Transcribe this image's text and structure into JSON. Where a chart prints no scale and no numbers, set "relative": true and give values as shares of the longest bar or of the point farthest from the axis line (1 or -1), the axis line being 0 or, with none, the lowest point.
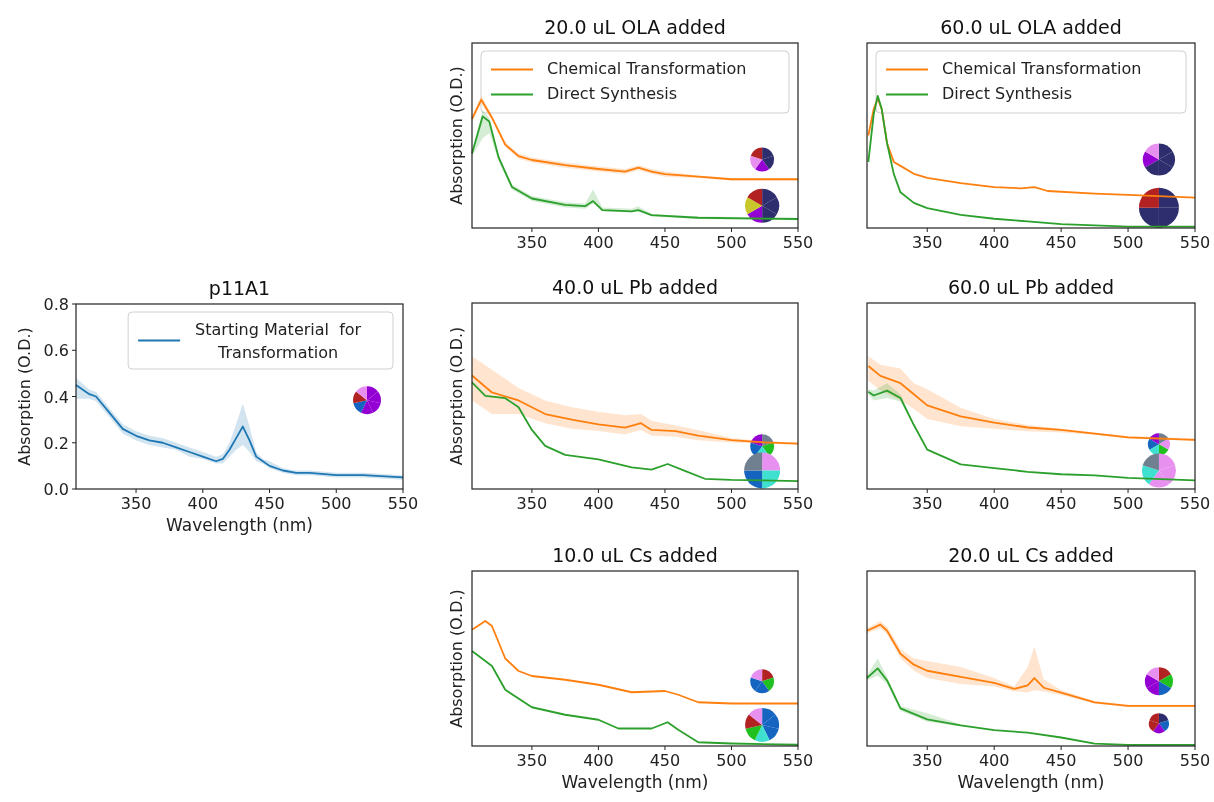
{
  "chart_data": [
    {
      "type": "line",
      "title": "p11A1",
      "xlabel": "Wavelength (nm)",
      "ylabel": "Absorption (O.D.)",
      "xlim": [
        305,
        550
      ],
      "xticks": [
        350,
        400,
        450,
        500,
        550
      ],
      "ylim": [
        0,
        0.8
      ],
      "yticks": [
        {
          "value": 0,
          "label": "0.0"
        },
        0.2,
        0.4,
        0.6,
        0.8
      ],
      "legend": "top right",
      "series": [
        {
          "name": "Starting Material  for Transformation",
          "color": "#1f77b4",
          "x": [
            305,
            315,
            320,
            330,
            340,
            350,
            360,
            370,
            380,
            390,
            400,
            410,
            415,
            420,
            425,
            430,
            435,
            440,
            445,
            450,
            460,
            470,
            480,
            500,
            520,
            550
          ],
          "values": [
            0.45,
            0.41,
            0.4,
            0.33,
            0.26,
            0.23,
            0.21,
            0.2,
            0.18,
            0.16,
            0.14,
            0.12,
            0.13,
            0.17,
            0.22,
            0.27,
            0.21,
            0.14,
            0.12,
            0.1,
            0.08,
            0.07,
            0.07,
            0.06,
            0.06,
            0.05
          ],
          "upper": [
            0.48,
            0.43,
            0.42,
            0.35,
            0.28,
            0.25,
            0.23,
            0.22,
            0.2,
            0.18,
            0.16,
            0.14,
            0.15,
            0.2,
            0.28,
            0.37,
            0.27,
            0.16,
            0.13,
            0.12,
            0.09,
            0.08,
            0.08,
            0.07,
            0.07,
            0.06
          ],
          "lower": [
            0.39,
            0.39,
            0.38,
            0.31,
            0.24,
            0.21,
            0.19,
            0.18,
            0.17,
            0.14,
            0.13,
            0.11,
            0.11,
            0.14,
            0.17,
            0.19,
            0.16,
            0.12,
            0.11,
            0.09,
            0.07,
            0.06,
            0.06,
            0.05,
            0.05,
            0.04
          ]
        }
      ]
    },
    {
      "type": "line",
      "title": "20.0 uL OLA added",
      "ylabel": "Absorption (O.D.)",
      "relative": true,
      "xlim": [
        305,
        550
      ],
      "xticks": [
        350,
        400,
        450,
        500,
        550
      ],
      "tick_labels": "x",
      "legend": "top",
      "series": [
        {
          "name": "Chemical Transformation",
          "color": "#ff7f0e",
          "x": [
            305,
            312,
            320,
            330,
            340,
            350,
            375,
            400,
            420,
            430,
            440,
            450,
            475,
            500,
            550
          ],
          "values": [
            0.85,
            1,
            0.86,
            0.65,
            0.56,
            0.53,
            0.49,
            0.46,
            0.44,
            0.47,
            0.44,
            0.42,
            0.4,
            0.38,
            0.38
          ],
          "upper": [
            0.87,
            1.03,
            0.88,
            0.67,
            0.58,
            0.55,
            0.51,
            0.48,
            0.46,
            0.49,
            0.46,
            0.44,
            0.41,
            0.39,
            0.39
          ],
          "lower": [
            0.83,
            0.97,
            0.84,
            0.63,
            0.54,
            0.51,
            0.47,
            0.44,
            0.42,
            0.45,
            0.42,
            0.4,
            0.39,
            0.37,
            0.37
          ]
        },
        {
          "name": "Direct Synthesis",
          "color": "#2ca02c",
          "x": [
            305,
            313,
            318,
            325,
            335,
            350,
            375,
            390,
            396,
            403,
            425,
            430,
            440,
            475,
            550
          ],
          "values": [
            0.58,
            0.87,
            0.83,
            0.55,
            0.32,
            0.23,
            0.18,
            0.17,
            0.21,
            0.14,
            0.13,
            0.14,
            0.1,
            0.08,
            0.07
          ],
          "upper": [
            0.6,
            0.92,
            0.86,
            0.57,
            0.34,
            0.25,
            0.2,
            0.19,
            0.3,
            0.16,
            0.15,
            0.17,
            0.11,
            0.09,
            0.08
          ],
          "lower": [
            0.56,
            0.7,
            0.74,
            0.52,
            0.3,
            0.21,
            0.16,
            0.15,
            0.19,
            0.13,
            0.12,
            0.13,
            0.09,
            0.07,
            0.06
          ]
        }
      ]
    },
    {
      "type": "line",
      "title": "60.0 uL OLA added",
      "relative": true,
      "xlim": [
        305,
        550
      ],
      "xticks": [
        350,
        400,
        450,
        500,
        550
      ],
      "tick_labels": "x",
      "legend": "top",
      "series": [
        {
          "name": "Chemical Transformation",
          "color": "#ff7f0e",
          "x": [
            306,
            310,
            313,
            316,
            320,
            325,
            330,
            340,
            350,
            375,
            400,
            420,
            430,
            440,
            475,
            500,
            550
          ],
          "values": [
            0.7,
            0.9,
            0.98,
            0.9,
            0.64,
            0.5,
            0.47,
            0.41,
            0.38,
            0.34,
            0.31,
            0.3,
            0.31,
            0.28,
            0.26,
            0.25,
            0.23
          ]
        },
        {
          "name": "Direct Synthesis",
          "color": "#2ca02c",
          "x": [
            306,
            310,
            313,
            316,
            320,
            325,
            330,
            340,
            350,
            375,
            400,
            425,
            450,
            500,
            550
          ],
          "values": [
            0.5,
            0.86,
            1,
            0.9,
            0.64,
            0.41,
            0.27,
            0.19,
            0.15,
            0.1,
            0.07,
            0.05,
            0.03,
            0.01,
            0.01
          ]
        }
      ]
    },
    {
      "type": "line",
      "title": "40.0 uL Pb added",
      "ylabel": "Absorption (O.D.)",
      "relative": true,
      "xlim": [
        305,
        550
      ],
      "xticks": [
        350,
        400,
        450,
        500,
        550
      ],
      "tick_labels": "x",
      "series": [
        {
          "color": "#ff7f0e",
          "x": [
            305,
            320,
            340,
            360,
            380,
            400,
            420,
            432,
            440,
            458,
            475,
            500,
            525,
            550
          ],
          "values": [
            1,
            0.85,
            0.78,
            0.66,
            0.61,
            0.57,
            0.54,
            0.58,
            0.52,
            0.51,
            0.47,
            0.43,
            0.41,
            0.4
          ],
          "upper": [
            1.17,
            1.05,
            0.89,
            0.78,
            0.72,
            0.68,
            0.65,
            0.66,
            0.6,
            0.56,
            0.52,
            0.45,
            0.42,
            0.41
          ],
          "lower": [
            0.78,
            0.66,
            0.66,
            0.58,
            0.53,
            0.51,
            0.48,
            0.52,
            0.47,
            0.46,
            0.43,
            0.41,
            0.4,
            0.39
          ]
        },
        {
          "color": "#2ca02c",
          "x": [
            305,
            315,
            330,
            340,
            350,
            360,
            375,
            400,
            425,
            440,
            452,
            465,
            480,
            500,
            550
          ],
          "values": [
            0.94,
            0.82,
            0.8,
            0.72,
            0.52,
            0.38,
            0.3,
            0.26,
            0.19,
            0.17,
            0.22,
            0.16,
            0.09,
            0.08,
            0.07
          ]
        }
      ]
    },
    {
      "type": "line",
      "title": "60.0 uL Pb added",
      "relative": true,
      "xlim": [
        305,
        550
      ],
      "xticks": [
        350,
        400,
        450,
        500,
        550
      ],
      "tick_labels": "x",
      "series": [
        {
          "color": "#ff7f0e",
          "x": [
            306,
            315,
            330,
            340,
            350,
            375,
            400,
            425,
            450,
            475,
            500,
            550
          ],
          "values": [
            1,
            0.92,
            0.86,
            0.77,
            0.68,
            0.59,
            0.54,
            0.5,
            0.48,
            0.45,
            0.42,
            0.4
          ],
          "upper": [
            1.08,
            1.01,
            0.98,
            0.86,
            0.81,
            0.66,
            0.57,
            0.52,
            0.49,
            0.46,
            0.43,
            0.41
          ],
          "lower": [
            0.88,
            0.8,
            0.72,
            0.65,
            0.57,
            0.51,
            0.49,
            0.47,
            0.46,
            0.44,
            0.41,
            0.39
          ]
        },
        {
          "color": "#2ca02c",
          "x": [
            306,
            310,
            320,
            330,
            340,
            350,
            375,
            400,
            425,
            450,
            475,
            500,
            550
          ],
          "values": [
            0.79,
            0.76,
            0.8,
            0.74,
            0.52,
            0.32,
            0.2,
            0.17,
            0.14,
            0.12,
            0.11,
            0.09,
            0.07
          ],
          "upper": [
            0.81,
            0.8,
            0.86,
            0.77,
            0.53,
            0.33,
            null,
            null,
            null,
            null,
            null,
            null,
            null
          ],
          "lower": [
            0.77,
            0.72,
            0.74,
            0.71,
            0.51,
            0.31,
            null,
            null,
            null,
            null,
            null,
            null,
            null
          ]
        }
      ]
    },
    {
      "type": "line",
      "title": "10.0 uL Cs added",
      "xlabel": "Wavelength (nm)",
      "ylabel": "Absorption (O.D.)",
      "relative": true,
      "xlim": [
        305,
        550
      ],
      "xticks": [
        350,
        400,
        450,
        500,
        550
      ],
      "tick_labels": "x",
      "series": [
        {
          "color": "#ff7f0e",
          "x": [
            305,
            315,
            320,
            330,
            340,
            350,
            375,
            400,
            425,
            450,
            460,
            475,
            500,
            550
          ],
          "values": [
            0.93,
            1,
            0.96,
            0.7,
            0.6,
            0.56,
            0.53,
            0.49,
            0.43,
            0.44,
            0.41,
            0.35,
            0.34,
            0.34
          ]
        },
        {
          "color": "#2ca02c",
          "x": [
            305,
            315,
            320,
            330,
            350,
            375,
            400,
            415,
            440,
            452,
            460,
            475,
            500,
            550
          ],
          "values": [
            0.76,
            0.68,
            0.64,
            0.45,
            0.31,
            0.25,
            0.21,
            0.14,
            0.14,
            0.19,
            0.13,
            0.03,
            0.02,
            0.01
          ]
        }
      ]
    },
    {
      "type": "line",
      "title": "20.0 uL Cs added",
      "xlabel": "Wavelength (nm)",
      "relative": true,
      "xlim": [
        305,
        550
      ],
      "xticks": [
        350,
        400,
        450,
        500,
        550
      ],
      "tick_labels": "x",
      "series": [
        {
          "color": "#ff7f0e",
          "x": [
            305,
            315,
            320,
            330,
            340,
            350,
            375,
            400,
            415,
            425,
            430,
            437,
            450,
            475,
            500,
            550
          ],
          "values": [
            0.95,
            1,
            0.95,
            0.76,
            0.67,
            0.62,
            0.57,
            0.52,
            0.47,
            0.5,
            0.56,
            0.48,
            0.44,
            0.36,
            0.33,
            0.33
          ],
          "upper": [
            0.97,
            1.03,
            0.98,
            0.8,
            0.72,
            0.7,
            0.65,
            0.56,
            0.49,
            0.65,
            0.82,
            0.55,
            0.46,
            0.37,
            0.34,
            0.34
          ],
          "lower": [
            0.93,
            0.97,
            0.92,
            0.72,
            0.62,
            0.56,
            0.51,
            0.49,
            0.45,
            0.44,
            0.46,
            0.45,
            0.42,
            0.35,
            0.32,
            0.32
          ]
        },
        {
          "color": "#2ca02c",
          "x": [
            305,
            313,
            320,
            330,
            350,
            375,
            400,
            425,
            450,
            475,
            500,
            550
          ],
          "values": [
            0.56,
            0.64,
            0.54,
            0.31,
            0.22,
            0.17,
            0.13,
            0.11,
            0.07,
            0.02,
            0.01,
            0.01
          ],
          "upper": [
            0.58,
            0.72,
            0.57,
            0.33,
            0.27,
            0.18,
            null,
            null,
            null,
            null,
            null,
            null
          ],
          "lower": [
            0.54,
            0.58,
            0.51,
            0.29,
            0.2,
            0.16,
            null,
            null,
            null,
            null,
            null,
            null
          ]
        }
      ]
    }
  ]
}
